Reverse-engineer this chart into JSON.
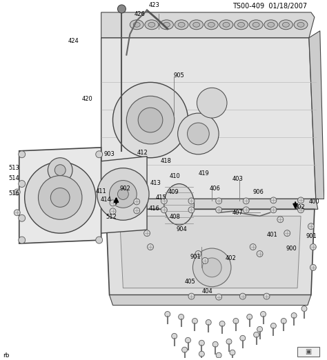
{
  "title": "TS00-409  01/18/2007",
  "bg_color": "#ffffff",
  "fig_width": 4.74,
  "fig_height": 5.22,
  "dpi": 100,
  "watermark": "rb",
  "text_color": "#000000",
  "label_fontsize": 6.0,
  "title_fontsize": 7.0
}
